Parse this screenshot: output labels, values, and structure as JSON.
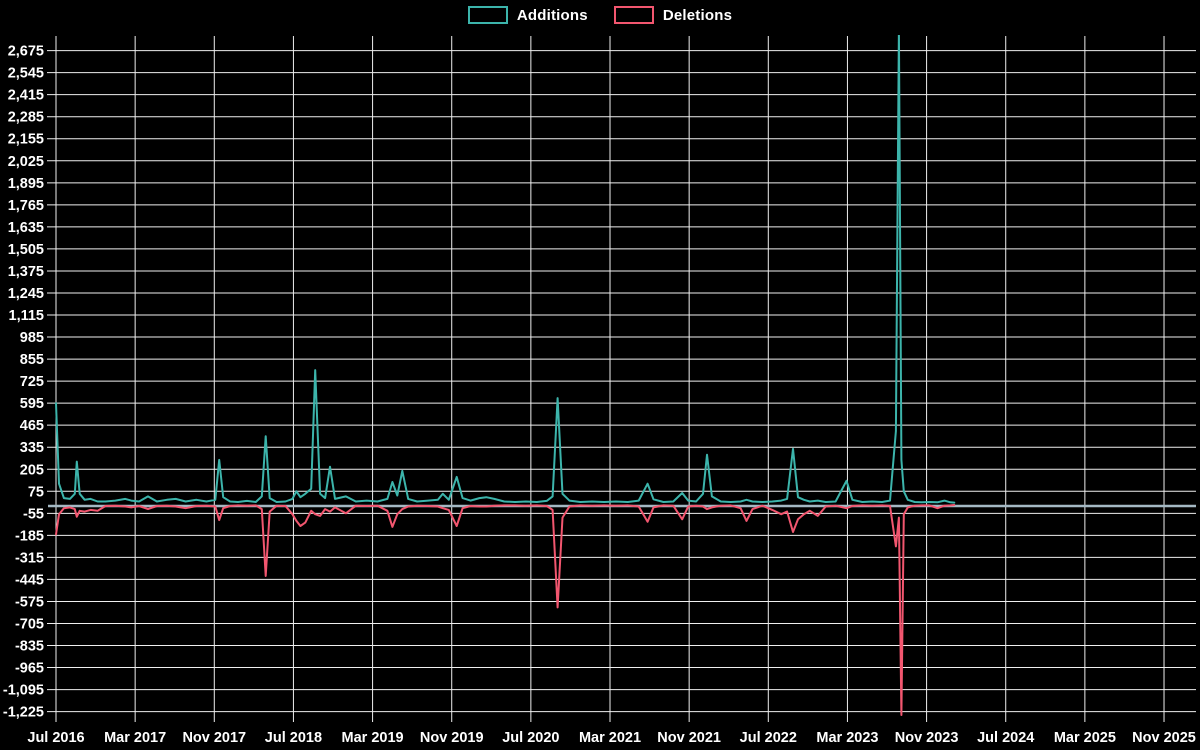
{
  "legend": {
    "items": [
      {
        "label": "Additions",
        "color": "#3cb4ab"
      },
      {
        "label": "Deletions",
        "color": "#f2566f"
      }
    ]
  },
  "chart_data": {
    "type": "line",
    "title": "",
    "xlabel": "",
    "ylabel": "",
    "background_color": "#000000",
    "grid": true,
    "grid_color": "#efefef",
    "zero_axis_line_color": "#a4b8c3",
    "text_color": "#ffffff",
    "legend_position": "top-center",
    "x_axis": {
      "tick_labels": [
        "Jul 2016",
        "Mar 2017",
        "Nov 2017",
        "Jul 2018",
        "Mar 2019",
        "Nov 2019",
        "Jul 2020",
        "Mar 2021",
        "Nov 2021",
        "Jul 2022",
        "Mar 2023",
        "Nov 2023",
        "Jul 2024",
        "Mar 2025",
        "Nov 2025"
      ],
      "tick_month_offsets": [
        0,
        8,
        16,
        24,
        32,
        40,
        48,
        56,
        64,
        72,
        80,
        88,
        96,
        104,
        112
      ],
      "months_per_tick": 8
    },
    "y_axis": {
      "min": -1225,
      "max": 2675,
      "step": 130,
      "tick_labels": [
        "2,675",
        "2,545",
        "2,415",
        "2,285",
        "2,155",
        "2,025",
        "1,895",
        "1,765",
        "1,635",
        "1,505",
        "1,375",
        "1,245",
        "1,115",
        "985",
        "855",
        "725",
        "595",
        "465",
        "335",
        "205",
        "75",
        "-55",
        "-185",
        "-315",
        "-445",
        "-575",
        "-705",
        "-835",
        "-965",
        "-1,095",
        "-1,225"
      ]
    },
    "note": "x of each point = months after Jul 2016; additions clipped at plot top (value > 2,675) at the Sep 2023 spike",
    "series": [
      {
        "name": "Additions",
        "color": "#3cb4ab",
        "points_x": [
          0.0,
          0.3,
          0.8,
          1.4,
          1.9,
          2.1,
          2.4,
          2.9,
          3.5,
          4.2,
          5.0,
          6.0,
          7.0,
          7.6,
          8.4,
          9.3,
          10.2,
          11.2,
          12.1,
          13.1,
          14.2,
          15.2,
          16.1,
          16.5,
          16.9,
          17.6,
          18.4,
          19.3,
          20.2,
          20.8,
          21.2,
          21.6,
          22.3,
          23.2,
          23.9,
          24.3,
          24.7,
          25.2,
          25.8,
          26.2,
          26.7,
          27.2,
          27.7,
          28.2,
          29.3,
          30.3,
          31.4,
          32.5,
          33.5,
          34.0,
          34.5,
          35.0,
          35.6,
          36.5,
          37.6,
          38.6,
          39.1,
          39.7,
          40.5,
          41.1,
          41.9,
          42.8,
          43.5,
          44.3,
          45.3,
          46.4,
          47.5,
          48.6,
          49.6,
          50.2,
          50.7,
          51.2,
          51.9,
          53.0,
          54.2,
          55.4,
          56.6,
          57.8,
          58.9,
          59.8,
          60.4,
          61.4,
          62.4,
          63.3,
          63.9,
          64.7,
          65.4,
          65.8,
          66.3,
          67.2,
          68.2,
          69.2,
          69.8,
          70.4,
          71.4,
          72.4,
          73.3,
          73.9,
          74.5,
          75.0,
          75.6,
          76.2,
          77.0,
          77.8,
          78.8,
          79.9,
          80.5,
          81.5,
          82.5,
          83.5,
          84.3,
          84.9,
          85.2,
          85.45,
          85.7,
          86.1,
          86.8,
          87.5,
          88.3,
          89.1,
          89.8,
          90.4,
          90.8
        ],
        "values": [
          595,
          120,
          35,
          30,
          60,
          250,
          60,
          25,
          30,
          15,
          15,
          20,
          30,
          20,
          15,
          45,
          15,
          25,
          30,
          15,
          25,
          15,
          25,
          260,
          40,
          15,
          12,
          18,
          12,
          45,
          400,
          35,
          12,
          15,
          30,
          75,
          40,
          60,
          90,
          790,
          60,
          35,
          220,
          30,
          45,
          15,
          20,
          15,
          30,
          130,
          50,
          195,
          30,
          15,
          20,
          25,
          60,
          25,
          160,
          35,
          20,
          35,
          40,
          30,
          15,
          12,
          15,
          12,
          18,
          45,
          625,
          60,
          20,
          12,
          15,
          12,
          15,
          12,
          20,
          120,
          28,
          12,
          15,
          65,
          20,
          15,
          60,
          290,
          45,
          15,
          12,
          15,
          25,
          15,
          12,
          15,
          20,
          30,
          325,
          40,
          25,
          15,
          20,
          12,
          15,
          137,
          25,
          12,
          15,
          12,
          20,
          430,
          2800,
          260,
          75,
          25,
          12,
          10,
          12,
          10,
          20,
          10,
          8
        ]
      },
      {
        "name": "Deletions",
        "color": "#f2566f",
        "points_x": [
          0.0,
          0.3,
          0.8,
          1.4,
          1.9,
          2.1,
          2.4,
          2.9,
          3.5,
          4.2,
          5.0,
          6.0,
          7.0,
          7.6,
          8.4,
          9.3,
          10.2,
          11.2,
          12.1,
          13.1,
          14.2,
          15.2,
          16.1,
          16.5,
          16.9,
          17.6,
          18.4,
          19.3,
          20.2,
          20.8,
          21.2,
          21.6,
          22.3,
          23.2,
          23.9,
          24.3,
          24.7,
          25.2,
          25.8,
          26.2,
          26.7,
          27.2,
          27.7,
          28.2,
          29.3,
          30.3,
          31.4,
          32.5,
          33.5,
          34.0,
          34.5,
          35.0,
          35.6,
          36.5,
          37.6,
          38.6,
          39.1,
          39.7,
          40.5,
          41.1,
          41.9,
          42.8,
          43.5,
          44.3,
          45.3,
          46.4,
          47.5,
          48.6,
          49.6,
          50.2,
          50.7,
          51.2,
          51.9,
          53.0,
          54.2,
          55.4,
          56.6,
          57.8,
          58.9,
          59.8,
          60.4,
          61.4,
          62.4,
          63.3,
          63.9,
          64.7,
          65.4,
          65.8,
          66.3,
          67.2,
          68.2,
          69.2,
          69.8,
          70.4,
          71.4,
          72.4,
          73.3,
          73.9,
          74.5,
          75.0,
          75.6,
          76.2,
          77.0,
          77.8,
          78.8,
          79.9,
          80.5,
          81.5,
          82.5,
          83.5,
          84.3,
          84.9,
          85.2,
          85.45,
          85.7,
          86.1,
          86.8,
          87.5,
          88.3,
          89.1,
          89.8,
          90.4,
          90.8
        ],
        "values": [
          -180,
          -60,
          -25,
          -20,
          -30,
          -75,
          -40,
          -45,
          -35,
          -40,
          -12,
          -10,
          -15,
          -20,
          -12,
          -30,
          -12,
          -10,
          -15,
          -25,
          -12,
          -10,
          -15,
          -95,
          -25,
          -12,
          -8,
          -10,
          -8,
          -30,
          -425,
          -45,
          -10,
          -12,
          -60,
          -100,
          -130,
          -110,
          -40,
          -60,
          -70,
          -30,
          -45,
          -20,
          -55,
          -10,
          -12,
          -10,
          -40,
          -135,
          -60,
          -30,
          -15,
          -10,
          -12,
          -15,
          -25,
          -35,
          -130,
          -25,
          -12,
          -15,
          -15,
          -10,
          -8,
          -8,
          -10,
          -8,
          -12,
          -35,
          -610,
          -80,
          -15,
          -8,
          -10,
          -8,
          -10,
          -8,
          -15,
          -105,
          -20,
          -8,
          -10,
          -90,
          -15,
          -10,
          -15,
          -30,
          -20,
          -10,
          -8,
          -25,
          -100,
          -30,
          -10,
          -35,
          -60,
          -45,
          -165,
          -90,
          -60,
          -40,
          -70,
          -15,
          -10,
          -25,
          -12,
          -8,
          -10,
          -8,
          -12,
          -250,
          -80,
          -1245,
          -60,
          -20,
          -10,
          -8,
          -8,
          -25,
          -10,
          -8,
          -6
        ]
      }
    ]
  }
}
